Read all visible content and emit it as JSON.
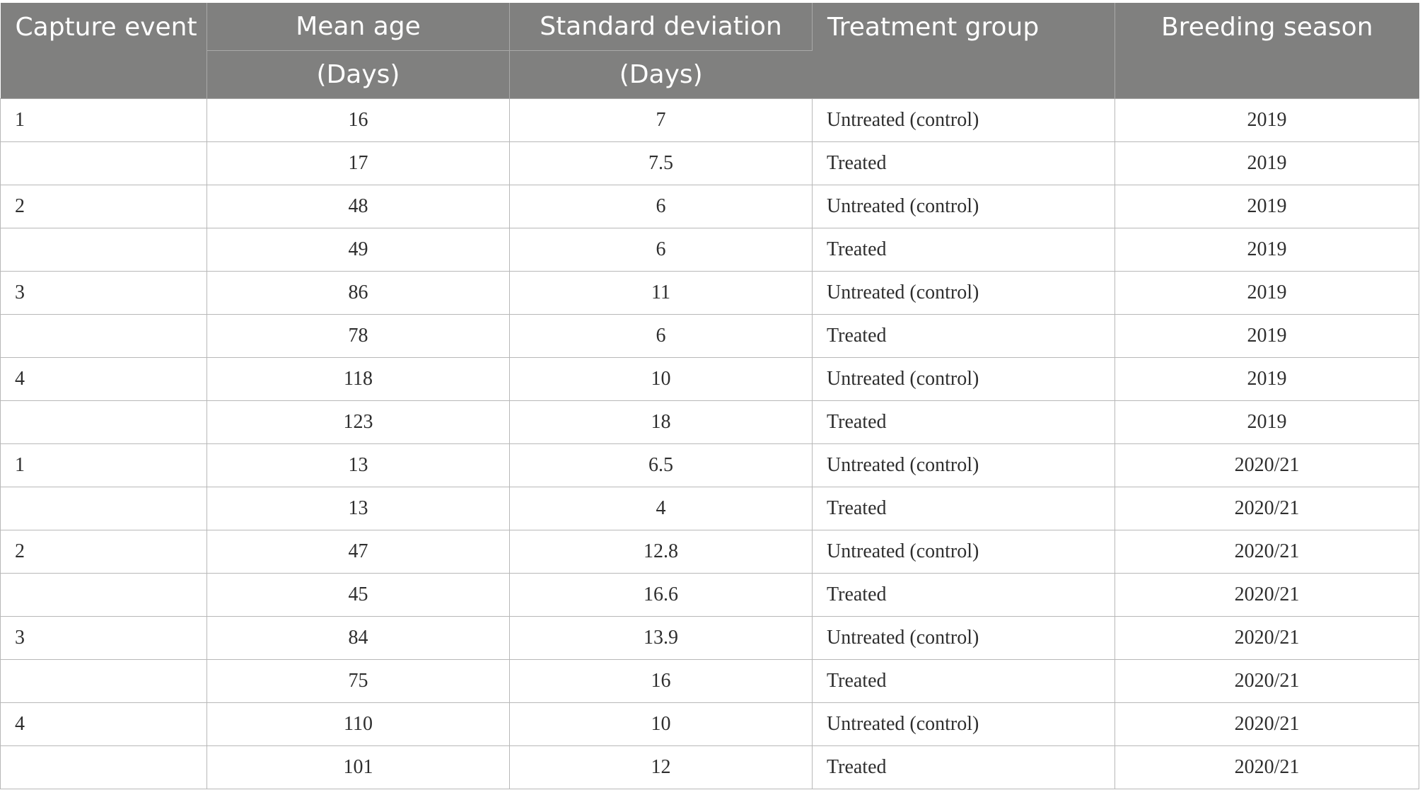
{
  "header": {
    "capture_event": "Capture event",
    "mean_age": "Mean age",
    "mean_age_unit": "(Days)",
    "std_dev": "Standard deviation",
    "std_dev_unit": "(Days)",
    "treatment_group": "Treatment group",
    "breeding_season": "Breeding season"
  },
  "rows": [
    {
      "event": "1",
      "mean": "16",
      "sd": "7",
      "group": "Untreated (control)",
      "season": "2019"
    },
    {
      "event": "",
      "mean": "17",
      "sd": "7.5",
      "group": "Treated",
      "season": "2019"
    },
    {
      "event": "2",
      "mean": "48",
      "sd": "6",
      "group": "Untreated (control)",
      "season": "2019"
    },
    {
      "event": "",
      "mean": "49",
      "sd": "6",
      "group": "Treated",
      "season": "2019"
    },
    {
      "event": "3",
      "mean": "86",
      "sd": "11",
      "group": "Untreated (control)",
      "season": "2019"
    },
    {
      "event": "",
      "mean": "78",
      "sd": "6",
      "group": "Treated",
      "season": "2019"
    },
    {
      "event": "4",
      "mean": "118",
      "sd": "10",
      "group": "Untreated (control)",
      "season": "2019"
    },
    {
      "event": "",
      "mean": "123",
      "sd": "18",
      "group": "Treated",
      "season": "2019"
    },
    {
      "event": "1",
      "mean": "13",
      "sd": "6.5",
      "group": "Untreated (control)",
      "season": "2020/21"
    },
    {
      "event": "",
      "mean": "13",
      "sd": "4",
      "group": "Treated",
      "season": "2020/21"
    },
    {
      "event": "2",
      "mean": "47",
      "sd": "12.8",
      "group": "Untreated (control)",
      "season": "2020/21"
    },
    {
      "event": "",
      "mean": "45",
      "sd": "16.6",
      "group": "Treated",
      "season": "2020/21"
    },
    {
      "event": "3",
      "mean": "84",
      "sd": "13.9",
      "group": "Untreated (control)",
      "season": "2020/21"
    },
    {
      "event": "",
      "mean": "75",
      "sd": "16",
      "group": "Treated",
      "season": "2020/21"
    },
    {
      "event": "4",
      "mean": "110",
      "sd": "10",
      "group": "Untreated (control)",
      "season": "2020/21"
    },
    {
      "event": "",
      "mean": "101",
      "sd": "12",
      "group": "Treated",
      "season": "2020/21"
    }
  ],
  "colors": {
    "header_bg": "#80807f",
    "header_text": "#ffffff",
    "cell_text": "#2e2e2e",
    "grid_line": "#b8b8b8"
  }
}
